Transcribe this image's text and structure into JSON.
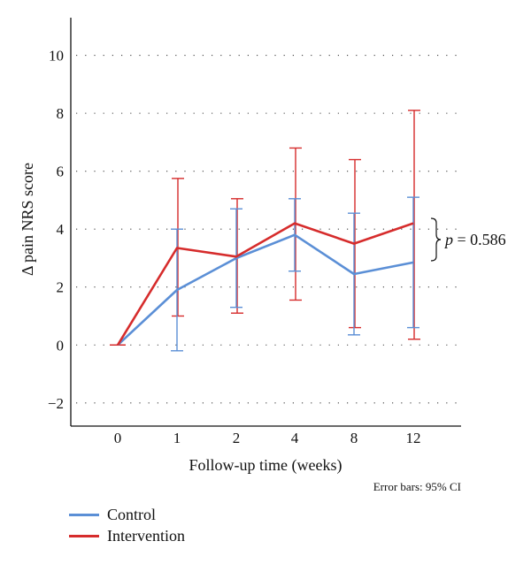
{
  "chart_data": {
    "type": "line",
    "categories": [
      "0",
      "1",
      "2",
      "4",
      "8",
      "12"
    ],
    "xlabel": "Follow-up time (weeks)",
    "ylabel": "Δ pain NRS score",
    "ylim": [
      -2.8,
      11.3
    ],
    "yticks": [
      -2,
      0,
      2,
      4,
      6,
      8,
      10
    ],
    "grid": "horizontal dotted",
    "note": "Error bars: 95% CI",
    "annotation": {
      "prefix": "p",
      "text": " = 0.586"
    },
    "series": [
      {
        "name": "Control",
        "color": "#5b8fd6",
        "values": [
          0,
          1.9,
          3.0,
          3.8,
          2.45,
          2.85
        ],
        "ci_low": [
          0,
          -0.2,
          1.3,
          2.55,
          0.35,
          0.6
        ],
        "ci_high": [
          0,
          4.0,
          4.7,
          5.05,
          4.55,
          5.1
        ]
      },
      {
        "name": "Intervention",
        "color": "#d62c2c",
        "values": [
          0,
          3.35,
          3.05,
          4.2,
          3.5,
          4.2
        ],
        "ci_low": [
          0,
          1.0,
          1.1,
          1.55,
          0.6,
          0.2
        ],
        "ci_high": [
          0,
          5.75,
          5.05,
          6.8,
          6.4,
          8.1
        ]
      }
    ],
    "legend_position": "bottom-left"
  }
}
